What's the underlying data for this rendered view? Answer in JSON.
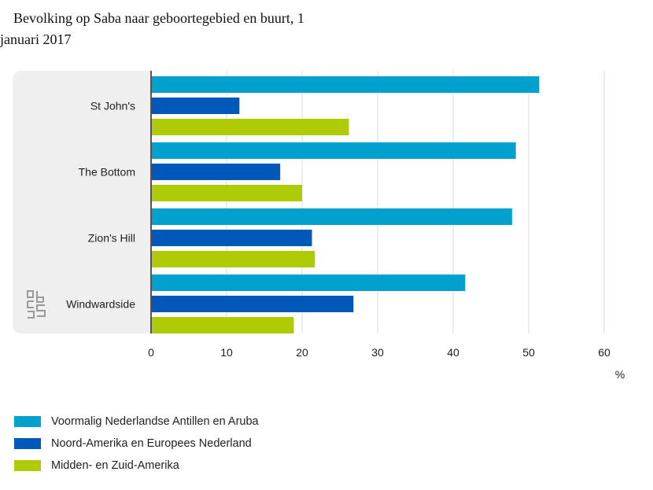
{
  "title": {
    "line1": "Bevolking op Saba naar geboortegebied en buurt, 1",
    "line2": "januari 2017"
  },
  "logo_text": "cbs",
  "chart_data": {
    "type": "bar",
    "orientation": "horizontal",
    "title": "Bevolking op Saba naar geboortegebied en buurt, 1 januari 2017",
    "categories": [
      "St John's",
      "The Bottom",
      "Zion's Hill",
      "Windwardside"
    ],
    "series": [
      {
        "name": "Voormalig Nederlandse Antillen en Aruba",
        "color": "#00a1cd",
        "values": [
          51.4,
          48.3,
          47.8,
          41.6
        ]
      },
      {
        "name": "Noord-Amerika en Europees Nederland",
        "color": "#0058b8",
        "values": [
          11.7,
          17.1,
          21.3,
          26.8
        ]
      },
      {
        "name": "Midden- en Zuid-Amerika",
        "color": "#afcb05",
        "values": [
          26.2,
          20.0,
          21.7,
          18.9
        ]
      }
    ],
    "xlim": [
      0,
      60
    ],
    "xticks": [
      "0",
      "10",
      "20",
      "30",
      "40",
      "50",
      "60"
    ],
    "xlabel": "",
    "unit": "%",
    "grid": true,
    "legend_position": "bottom-left"
  }
}
